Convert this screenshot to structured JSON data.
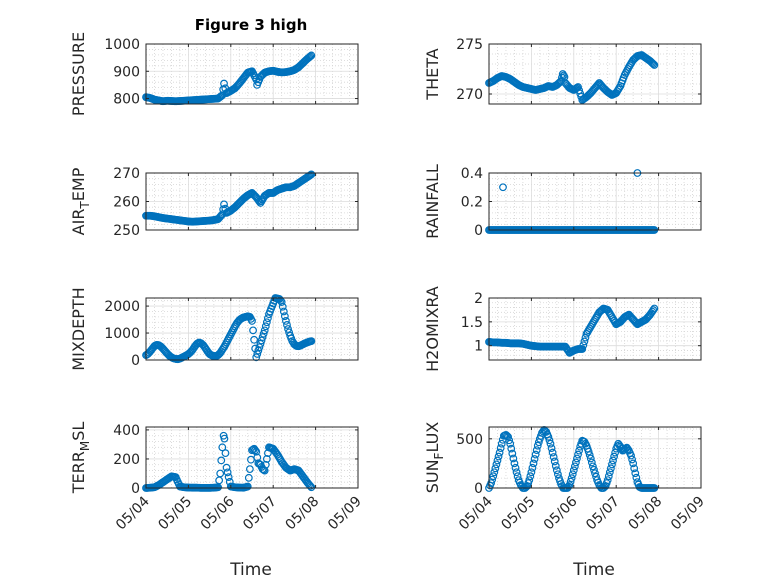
{
  "figure": {
    "title": "Figure 3 high",
    "xlabel": "Time",
    "marker_color": "#0072BD"
  },
  "chart_data": [
    {
      "type": "scatter",
      "ylabel": "PRESSURE",
      "ylabel_sub": "",
      "ylabel_after": "",
      "ylim": [
        780,
        1000
      ],
      "yticks": [
        800,
        900,
        1000
      ],
      "ytick_labels": [
        "800",
        "900",
        "1000"
      ],
      "xlim": [
        0,
        5
      ],
      "x": [
        0.0,
        0.1,
        0.2,
        0.3,
        0.4,
        0.5,
        0.6,
        0.7,
        0.8,
        0.9,
        1.0,
        1.1,
        1.2,
        1.3,
        1.4,
        1.5,
        1.6,
        1.7,
        1.8,
        1.84,
        1.9,
        2.0,
        2.1,
        2.2,
        2.3,
        2.4,
        2.5,
        2.6,
        2.62,
        2.7,
        2.8,
        2.9,
        3.0,
        3.1,
        3.2,
        3.3,
        3.4,
        3.5,
        3.6,
        3.7,
        3.8,
        3.9
      ],
      "y": [
        805,
        802,
        796,
        793,
        790,
        792,
        791,
        790,
        791,
        792,
        793,
        794,
        795,
        796,
        797,
        798,
        799,
        800,
        812,
        855,
        820,
        828,
        838,
        855,
        875,
        895,
        900,
        870,
        850,
        880,
        895,
        900,
        902,
        898,
        896,
        897,
        900,
        905,
        915,
        930,
        945,
        958
      ]
    },
    {
      "type": "scatter",
      "ylabel": "THETA",
      "ylabel_sub": "",
      "ylabel_after": "",
      "ylim": [
        269,
        275
      ],
      "yticks": [
        270,
        275
      ],
      "ytick_labels": [
        "270",
        "275"
      ],
      "xlim": [
        0,
        5
      ],
      "x": [
        0.0,
        0.1,
        0.2,
        0.3,
        0.4,
        0.5,
        0.6,
        0.7,
        0.8,
        0.9,
        1.0,
        1.1,
        1.2,
        1.3,
        1.4,
        1.5,
        1.6,
        1.7,
        1.74,
        1.78,
        1.8,
        1.9,
        2.0,
        2.1,
        2.2,
        2.3,
        2.4,
        2.5,
        2.6,
        2.7,
        2.8,
        2.9,
        3.0,
        3.1,
        3.2,
        3.3,
        3.4,
        3.5,
        3.6,
        3.7,
        3.8,
        3.9
      ],
      "y": [
        271.1,
        271.3,
        271.6,
        271.8,
        271.7,
        271.5,
        271.2,
        270.9,
        270.7,
        270.6,
        270.5,
        270.4,
        270.5,
        270.6,
        270.8,
        270.7,
        270.9,
        271.3,
        272.0,
        271.7,
        271.1,
        270.6,
        270.4,
        270.7,
        269.4,
        269.7,
        270.1,
        270.6,
        271.1,
        270.6,
        270.2,
        269.9,
        270.1,
        270.8,
        271.9,
        272.7,
        273.4,
        273.8,
        273.9,
        273.6,
        273.3,
        272.9
      ]
    },
    {
      "type": "scatter",
      "ylabel": "AIR",
      "ylabel_sub": "T",
      "ylabel_after": "EMP",
      "ylim": [
        250,
        270
      ],
      "yticks": [
        250,
        260,
        270
      ],
      "ytick_labels": [
        "250",
        "260",
        "270"
      ],
      "xlim": [
        0,
        5
      ],
      "x": [
        0.0,
        0.1,
        0.2,
        0.3,
        0.4,
        0.5,
        0.6,
        0.7,
        0.8,
        0.9,
        1.0,
        1.1,
        1.2,
        1.3,
        1.4,
        1.5,
        1.6,
        1.7,
        1.8,
        1.84,
        1.9,
        2.0,
        2.1,
        2.2,
        2.3,
        2.4,
        2.5,
        2.6,
        2.7,
        2.8,
        2.9,
        3.0,
        3.1,
        3.2,
        3.3,
        3.4,
        3.5,
        3.6,
        3.7,
        3.8,
        3.9
      ],
      "y": [
        255.0,
        255.0,
        254.8,
        254.5,
        254.2,
        254.0,
        253.8,
        253.6,
        253.4,
        253.2,
        253.0,
        252.9,
        253.0,
        253.1,
        253.2,
        253.3,
        253.5,
        253.8,
        255.5,
        259.0,
        256.0,
        256.8,
        258.0,
        259.5,
        261.0,
        262.2,
        263.0,
        261.5,
        259.5,
        262.0,
        263.0,
        263.0,
        264.0,
        264.5,
        265.0,
        265.0,
        265.5,
        266.5,
        267.5,
        268.5,
        269.5
      ]
    },
    {
      "type": "scatter",
      "ylabel": "RAINFALL",
      "ylabel_sub": "",
      "ylabel_after": "",
      "ylim": [
        0,
        0.4
      ],
      "yticks": [
        0,
        0.2,
        0.4
      ],
      "ytick_labels": [
        "0",
        "0.2",
        "0.4"
      ],
      "xlim": [
        0,
        5
      ],
      "x": [
        0.0,
        0.25,
        0.5,
        0.75,
        1.0,
        1.25,
        1.5,
        1.75,
        2.0,
        2.25,
        2.5,
        2.75,
        3.0,
        3.25,
        3.5,
        3.75,
        3.9,
        0.33,
        3.5
      ],
      "y": [
        0,
        0,
        0,
        0,
        0,
        0,
        0,
        0,
        0,
        0,
        0,
        0,
        0,
        0,
        0,
        0,
        0,
        0.3,
        0.4
      ]
    },
    {
      "type": "scatter",
      "ylabel": "MIXDEPTH",
      "ylabel_sub": "",
      "ylabel_after": "",
      "ylim": [
        0,
        2300
      ],
      "yticks": [
        0,
        1000,
        2000
      ],
      "ytick_labels": [
        "0",
        "1000",
        "2000"
      ],
      "xlim": [
        0,
        5
      ],
      "x": [
        0.0,
        0.05,
        0.1,
        0.15,
        0.2,
        0.25,
        0.3,
        0.35,
        0.4,
        0.45,
        0.5,
        0.55,
        0.6,
        0.65,
        0.7,
        0.75,
        0.8,
        0.85,
        0.9,
        0.95,
        1.0,
        1.05,
        1.1,
        1.15,
        1.2,
        1.25,
        1.3,
        1.35,
        1.4,
        1.45,
        1.5,
        1.55,
        1.6,
        1.65,
        1.7,
        1.75,
        1.8,
        1.85,
        1.9,
        1.95,
        2.0,
        2.05,
        2.1,
        2.15,
        2.2,
        2.25,
        2.3,
        2.35,
        2.4,
        2.45,
        2.5,
        2.55,
        2.6,
        2.65,
        2.7,
        2.75,
        2.8,
        2.85,
        2.9,
        2.95,
        3.0,
        3.05,
        3.1,
        3.15,
        3.2,
        3.25,
        3.3,
        3.35,
        3.4,
        3.45,
        3.5,
        3.55,
        3.6,
        3.65,
        3.7,
        3.75,
        3.8,
        3.85,
        3.9
      ],
      "y": [
        180,
        230,
        320,
        420,
        520,
        560,
        550,
        500,
        420,
        330,
        240,
        160,
        100,
        60,
        40,
        30,
        50,
        90,
        130,
        170,
        220,
        290,
        380,
        500,
        600,
        650,
        620,
        550,
        440,
        320,
        220,
        170,
        150,
        140,
        180,
        260,
        380,
        500,
        650,
        800,
        950,
        1100,
        1250,
        1380,
        1480,
        1540,
        1580,
        1600,
        1620,
        1600,
        1450,
        750,
        100,
        350,
        600,
        850,
        1100,
        1400,
        1700,
        1900,
        2100,
        2300,
        2280,
        2260,
        2150,
        1800,
        1450,
        1150,
        900,
        700,
        580,
        520,
        510,
        540,
        580,
        620,
        650,
        680,
        700
      ]
    },
    {
      "type": "scatter",
      "ylabel": "H2OMIXRA",
      "ylabel_sub": "",
      "ylabel_after": "",
      "ylim": [
        0.7,
        2.0
      ],
      "yticks": [
        1,
        1.5,
        2
      ],
      "ytick_labels": [
        "1",
        "1.5",
        "2"
      ],
      "xlim": [
        0,
        5
      ],
      "x": [
        0.0,
        0.1,
        0.2,
        0.3,
        0.4,
        0.5,
        0.6,
        0.7,
        0.8,
        0.9,
        1.0,
        1.1,
        1.2,
        1.3,
        1.4,
        1.5,
        1.6,
        1.7,
        1.8,
        1.9,
        2.0,
        2.1,
        2.2,
        2.3,
        2.4,
        2.5,
        2.6,
        2.7,
        2.8,
        2.9,
        3.0,
        3.1,
        3.2,
        3.3,
        3.4,
        3.5,
        3.6,
        3.7,
        3.8,
        3.9
      ],
      "y": [
        1.08,
        1.07,
        1.07,
        1.06,
        1.06,
        1.05,
        1.05,
        1.05,
        1.04,
        1.02,
        1.0,
        0.99,
        0.98,
        0.98,
        0.98,
        0.98,
        0.98,
        0.98,
        0.98,
        0.85,
        0.9,
        0.93,
        0.93,
        1.25,
        1.4,
        1.55,
        1.7,
        1.78,
        1.75,
        1.6,
        1.45,
        1.5,
        1.6,
        1.65,
        1.55,
        1.45,
        1.5,
        1.55,
        1.65,
        1.78
      ]
    },
    {
      "type": "scatter",
      "ylabel": "TERR",
      "ylabel_sub": "M",
      "ylabel_after": "SL",
      "ylim": [
        0,
        420
      ],
      "yticks": [
        0,
        200,
        400
      ],
      "ytick_labels": [
        "0",
        "200",
        "400"
      ],
      "xlim": [
        0,
        5
      ],
      "x": [
        0.0,
        0.1,
        0.2,
        0.3,
        0.4,
        0.5,
        0.6,
        0.7,
        0.8,
        0.9,
        1.0,
        1.1,
        1.2,
        1.3,
        1.4,
        1.5,
        1.6,
        1.7,
        1.75,
        1.8,
        1.83,
        1.85,
        1.9,
        2.0,
        2.1,
        2.2,
        2.3,
        2.4,
        2.45,
        2.5,
        2.55,
        2.6,
        2.65,
        2.7,
        2.75,
        2.8,
        2.9,
        3.0,
        3.1,
        3.2,
        3.3,
        3.4,
        3.5,
        3.6,
        3.7,
        3.8,
        3.9
      ],
      "y": [
        0,
        2,
        5,
        20,
        40,
        60,
        80,
        75,
        10,
        5,
        3,
        2,
        2,
        1,
        1,
        1,
        2,
        5,
        100,
        280,
        360,
        340,
        140,
        10,
        5,
        3,
        2,
        10,
        130,
        260,
        270,
        250,
        170,
        160,
        130,
        120,
        280,
        270,
        230,
        180,
        140,
        120,
        130,
        120,
        80,
        40,
        5
      ]
    },
    {
      "type": "scatter",
      "ylabel": "SUN",
      "ylabel_sub": "F",
      "ylabel_after": "LUX",
      "ylim": [
        0,
        620
      ],
      "yticks": [
        0,
        500
      ],
      "ytick_labels": [
        "0",
        "500"
      ],
      "xlim": [
        0,
        5
      ],
      "x": [
        0.0,
        0.05,
        0.1,
        0.15,
        0.2,
        0.25,
        0.3,
        0.35,
        0.4,
        0.45,
        0.5,
        0.55,
        0.6,
        0.65,
        0.7,
        0.75,
        0.8,
        0.85,
        0.9,
        0.95,
        1.0,
        1.05,
        1.1,
        1.15,
        1.2,
        1.25,
        1.3,
        1.35,
        1.4,
        1.45,
        1.5,
        1.55,
        1.6,
        1.65,
        1.7,
        1.75,
        1.8,
        1.85,
        1.9,
        1.95,
        2.0,
        2.05,
        2.1,
        2.15,
        2.2,
        2.25,
        2.3,
        2.35,
        2.4,
        2.45,
        2.5,
        2.55,
        2.6,
        2.65,
        2.7,
        2.75,
        2.8,
        2.85,
        2.9,
        2.95,
        3.0,
        3.05,
        3.1,
        3.15,
        3.2,
        3.25,
        3.3,
        3.35,
        3.4,
        3.45,
        3.5,
        3.55,
        3.6,
        3.65,
        3.7,
        3.75,
        3.8,
        3.85,
        3.9
      ],
      "y": [
        0,
        50,
        120,
        200,
        280,
        360,
        450,
        530,
        540,
        520,
        450,
        350,
        250,
        160,
        80,
        30,
        0,
        0,
        20,
        80,
        160,
        250,
        340,
        430,
        500,
        560,
        590,
        570,
        520,
        450,
        360,
        270,
        180,
        100,
        40,
        0,
        0,
        0,
        30,
        100,
        180,
        260,
        340,
        420,
        480,
        470,
        430,
        370,
        300,
        220,
        150,
        80,
        30,
        0,
        0,
        20,
        80,
        160,
        240,
        320,
        400,
        450,
        420,
        380,
        390,
        410,
        380,
        330,
        250,
        150,
        60,
        10,
        0,
        0,
        0,
        0,
        0,
        0,
        0
      ]
    }
  ],
  "xticks": [
    0,
    1,
    2,
    3,
    4,
    5
  ],
  "xtick_labels": [
    "05/04",
    "05/05",
    "05/06",
    "05/07",
    "05/08",
    "05/09"
  ]
}
